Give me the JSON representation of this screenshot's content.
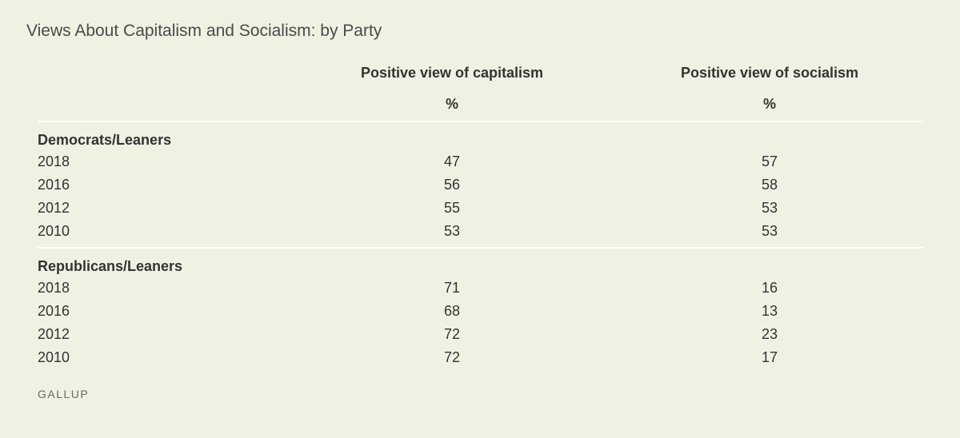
{
  "chart_data": {
    "type": "table",
    "title": "Views About Capitalism and Socialism: by Party",
    "columns": [
      "Positive view of capitalism",
      "Positive view of socialism"
    ],
    "unit": "%",
    "groups": [
      {
        "name": "Democrats/Leaners",
        "rows": [
          {
            "year": "2018",
            "values": [
              47,
              57
            ]
          },
          {
            "year": "2016",
            "values": [
              56,
              58
            ]
          },
          {
            "year": "2012",
            "values": [
              55,
              53
            ]
          },
          {
            "year": "2010",
            "values": [
              53,
              53
            ]
          }
        ]
      },
      {
        "name": "Republicans/Leaners",
        "rows": [
          {
            "year": "2018",
            "values": [
              71,
              16
            ]
          },
          {
            "year": "2016",
            "values": [
              68,
              13
            ]
          },
          {
            "year": "2012",
            "values": [
              72,
              23
            ]
          },
          {
            "year": "2010",
            "values": [
              72,
              17
            ]
          }
        ]
      }
    ]
  },
  "source": "GALLUP",
  "colors": {
    "background": "#eff2e3",
    "text": "#333333",
    "rule": "#ffffff"
  }
}
